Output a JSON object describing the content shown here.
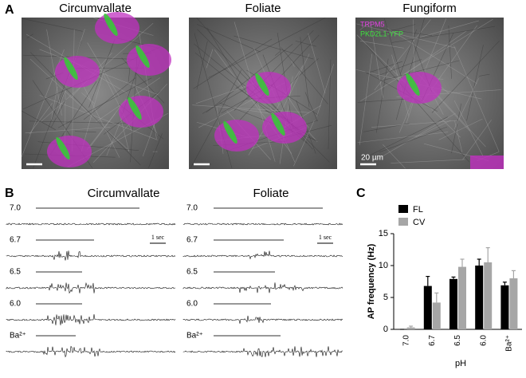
{
  "panel_a": {
    "label": "A",
    "titles": [
      "Circumvallate",
      "Foliate",
      "Fungiform"
    ],
    "legend": [
      "TRPM5",
      "PKD2L1-YFP"
    ],
    "scale_label": "20 µm"
  },
  "panel_b": {
    "label": "B",
    "titles": [
      "Circumvallate",
      "Foliate"
    ],
    "conditions": [
      "7.0",
      "6.7",
      "6.5",
      "6.0",
      "Ba²⁺"
    ],
    "time_scale": "1 sec"
  },
  "panel_c": {
    "label": "C"
  },
  "chart_data": {
    "type": "bar",
    "xlabel": "pH",
    "ylabel": "AP frequency (Hz)",
    "categories": [
      "7.0",
      "6.7",
      "6.5",
      "6.0",
      "Ba²⁺"
    ],
    "series": [
      {
        "name": "FL",
        "color": "#000000",
        "values": [
          0,
          6.8,
          7.9,
          10.0,
          6.9
        ],
        "errors": [
          0,
          1.5,
          0.3,
          1.0,
          0.5
        ]
      },
      {
        "name": "CV",
        "color": "#a6a6a6",
        "values": [
          0.3,
          4.2,
          9.8,
          10.5,
          8.0
        ],
        "errors": [
          0.2,
          1.5,
          1.2,
          2.3,
          1.2
        ]
      }
    ],
    "ylim": [
      0,
      15
    ],
    "yticks": [
      0,
      5,
      10,
      15
    ],
    "legend": "top-left"
  }
}
